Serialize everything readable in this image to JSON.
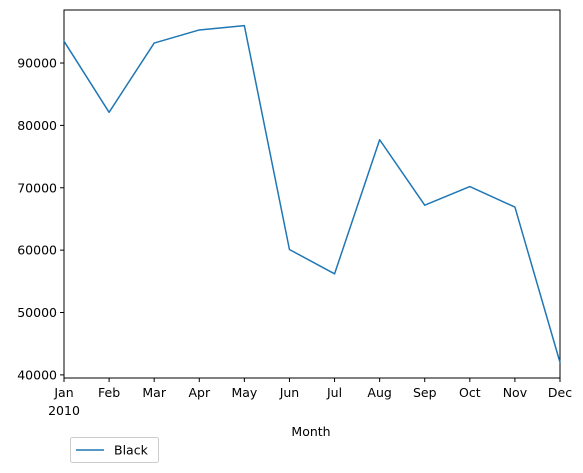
{
  "chart_data": {
    "type": "line",
    "categories": [
      "Jan",
      "Feb",
      "Mar",
      "Apr",
      "May",
      "Jun",
      "Jul",
      "Aug",
      "Sep",
      "Oct",
      "Nov",
      "Dec"
    ],
    "year_label": "2010",
    "series": [
      {
        "name": "Black",
        "color": "#1f77b4",
        "values": [
          93500,
          82100,
          93200,
          95300,
          96000,
          60100,
          56200,
          77700,
          67200,
          70200,
          66900,
          42000
        ]
      }
    ],
    "xlabel": "Month",
    "ylabel": "",
    "ylim": [
      39500,
      98500
    ],
    "yticks": [
      40000,
      50000,
      60000,
      70000,
      80000,
      90000
    ],
    "legend_position": "lower-left, outside below axes",
    "grid": false
  }
}
